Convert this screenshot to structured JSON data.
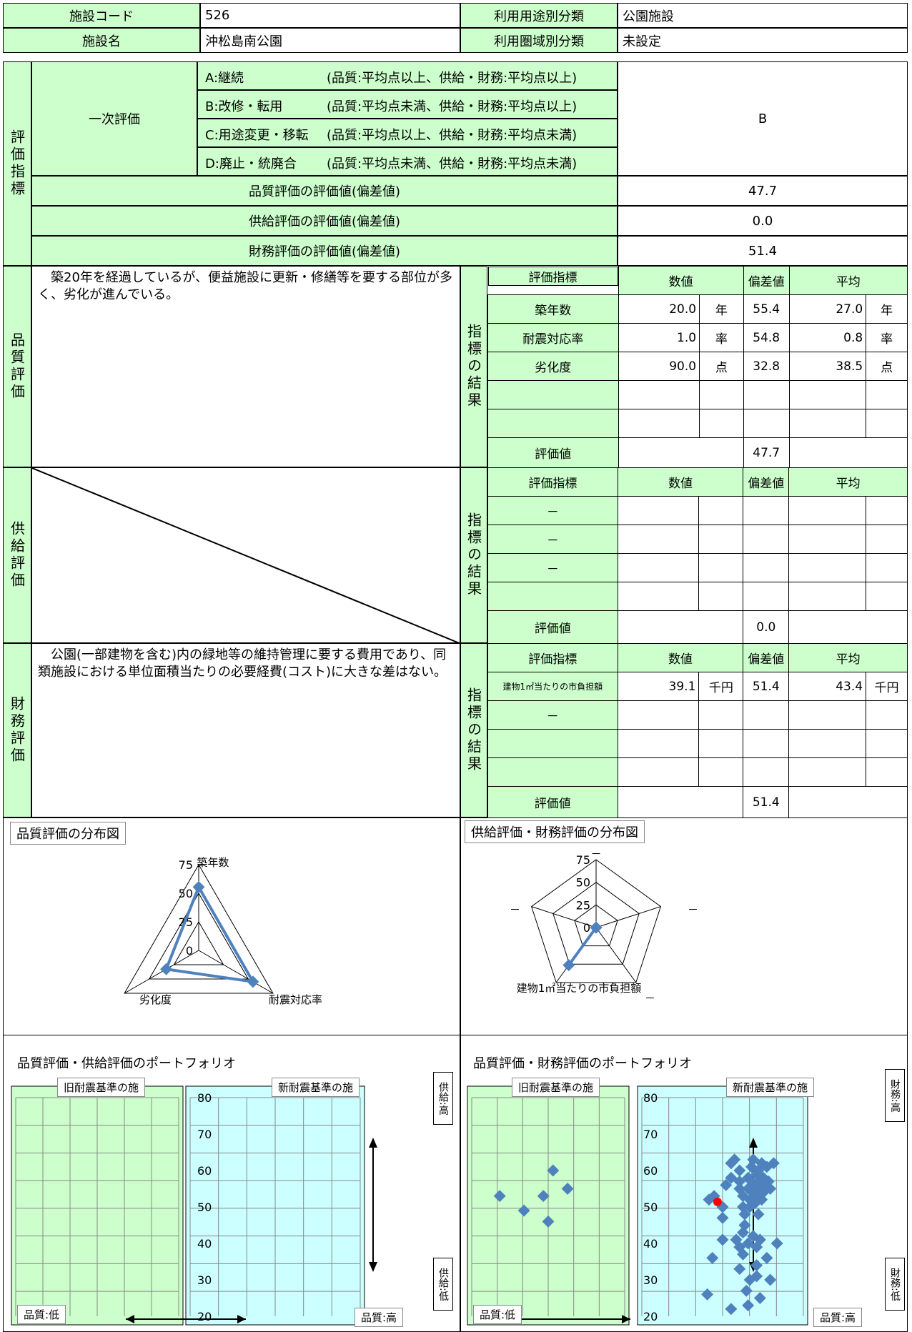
{
  "header": {
    "code_label": "施設コード",
    "code_value": "526",
    "usage_label": "利用用途別分類",
    "usage_value": "公園施設",
    "name_label": "施設名",
    "name_value": "沖松島南公園",
    "area_label": "利用圏域別分類",
    "area_value": "未設定"
  },
  "eval_index": {
    "side_label": "評価指標",
    "primary_label": "一次評価",
    "options": [
      {
        "code": "A:継続",
        "desc": "(品質:平均点以上、供給・財務:平均点以上)"
      },
      {
        "code": "B:改修・転用",
        "desc": "(品質:平均点未満、供給・財務:平均点以上)"
      },
      {
        "code": "C:用途変更・移転",
        "desc": "(品質:平均点以上、供給・財務:平均点未満)"
      },
      {
        "code": "D:廃止・統廃合",
        "desc": "(品質:平均点未満、供給・財務:平均点未満)"
      }
    ],
    "result": "B",
    "quality_label": "品質評価の評価値(偏差値)",
    "quality_value": "47.7",
    "supply_label": "供給評価の評価値(偏差値)",
    "supply_value": "0.0",
    "finance_label": "財務評価の評価値(偏差値)",
    "finance_value": "51.4"
  },
  "results_label": "指標の結果",
  "cols": {
    "indicator": "評価指標",
    "value": "数値",
    "deviation": "偏差値",
    "average": "平均",
    "eval": "評価値"
  },
  "quality": {
    "side_label": "品質評価",
    "comment": "　築20年を経過しているが、便益施設に更新・修繕等を要する部位が多く、劣化が進んでいる。",
    "rows": [
      {
        "name": "築年数",
        "value": "20.0",
        "unit": "年",
        "dev": "55.4",
        "avg": "27.0",
        "avg_unit": "年"
      },
      {
        "name": "耐震対応率",
        "value": "1.0",
        "unit": "率",
        "dev": "54.8",
        "avg": "0.8",
        "avg_unit": "率"
      },
      {
        "name": "劣化度",
        "value": "90.0",
        "unit": "点",
        "dev": "32.8",
        "avg": "38.5",
        "avg_unit": "点"
      }
    ],
    "eval_value": "47.7"
  },
  "supply": {
    "side_label": "供給評価",
    "rows": [
      {
        "name": "－"
      },
      {
        "name": "－"
      },
      {
        "name": "－"
      }
    ],
    "eval_value": "0.0"
  },
  "finance": {
    "side_label": "財務評価",
    "comment": "　公園(一部建物を含む)内の緑地等の維持管理に要する費用であり、同類施設における単位面積当たりの必要経費(コスト)に大きな差はない。",
    "rows": [
      {
        "name": "建物1㎡当たりの市負担額",
        "value": "39.1",
        "unit": "千円",
        "dev": "51.4",
        "avg": "43.4",
        "avg_unit": "千円"
      },
      {
        "name": "－"
      }
    ],
    "eval_value": "51.4"
  },
  "charts": {
    "radar1_title": "品質評価の分布図",
    "radar2_title": "供給評価・財務評価の分布図",
    "port1_title": "品質評価・供給評価のポートフォリオ",
    "port2_title": "品質評価・財務評価のポートフォリオ",
    "old_std": "旧耐震基準の施",
    "new_std": "新耐震基準の施",
    "q_low": "品質:低",
    "q_high": "品質:高",
    "s_high": "供給:高",
    "s_low": "供給:低",
    "f_high": "財務:高",
    "f_low": "財務:低"
  },
  "chart_data": [
    {
      "type": "radar",
      "axes": [
        "築年数",
        "耐震対応率",
        "劣化度"
      ],
      "ticks": [
        0,
        25,
        50,
        75
      ],
      "values": [
        55.4,
        54.8,
        32.8
      ]
    },
    {
      "type": "radar",
      "axes": [
        "－",
        "－",
        "－",
        "建物1㎡当たりの市負担額",
        "－"
      ],
      "ticks": [
        0,
        25,
        50,
        75
      ],
      "values": [
        0,
        0,
        0,
        51.4,
        0
      ]
    },
    {
      "type": "scatter",
      "ylim": [
        20,
        80
      ],
      "yticks": [
        80,
        70,
        60,
        50,
        40,
        30,
        20
      ],
      "points": []
    },
    {
      "type": "scatter",
      "ylim": [
        20,
        80
      ],
      "yticks": [
        80,
        70,
        60,
        50,
        40,
        30,
        20
      ],
      "old_points": [
        [
          0.2,
          53
        ],
        [
          0.35,
          49
        ],
        [
          0.53,
          60
        ],
        [
          0.47,
          53
        ],
        [
          0.62,
          55
        ],
        [
          0.5,
          46
        ]
      ],
      "new_points": [
        [
          0.42,
          52
        ],
        [
          0.45,
          53
        ],
        [
          0.5,
          47
        ],
        [
          0.5,
          50
        ],
        [
          0.52,
          56
        ],
        [
          0.55,
          58
        ],
        [
          0.55,
          62
        ],
        [
          0.57,
          63
        ],
        [
          0.6,
          60
        ],
        [
          0.6,
          57
        ],
        [
          0.6,
          55
        ],
        [
          0.62,
          53
        ],
        [
          0.62,
          50
        ],
        [
          0.63,
          48
        ],
        [
          0.63,
          45
        ],
        [
          0.65,
          58
        ],
        [
          0.65,
          55
        ],
        [
          0.66,
          52
        ],
        [
          0.66,
          50
        ],
        [
          0.67,
          61
        ],
        [
          0.67,
          57
        ],
        [
          0.68,
          63
        ],
        [
          0.68,
          54
        ],
        [
          0.69,
          51
        ],
        [
          0.7,
          59
        ],
        [
          0.7,
          56
        ],
        [
          0.7,
          53
        ],
        [
          0.71,
          60
        ],
        [
          0.71,
          48
        ],
        [
          0.72,
          57
        ],
        [
          0.72,
          55
        ],
        [
          0.73,
          62
        ],
        [
          0.73,
          52
        ],
        [
          0.74,
          58
        ],
        [
          0.74,
          54
        ],
        [
          0.75,
          56
        ],
        [
          0.76,
          61
        ],
        [
          0.77,
          57
        ],
        [
          0.78,
          55
        ],
        [
          0.8,
          62
        ],
        [
          0.58,
          41
        ],
        [
          0.6,
          39
        ],
        [
          0.62,
          37
        ],
        [
          0.65,
          40
        ],
        [
          0.68,
          42
        ],
        [
          0.7,
          39
        ],
        [
          0.72,
          41
        ],
        [
          0.6,
          33
        ],
        [
          0.66,
          30
        ],
        [
          0.7,
          31
        ],
        [
          0.78,
          30
        ],
        [
          0.64,
          27
        ],
        [
          0.72,
          25
        ],
        [
          0.7,
          34
        ],
        [
          0.76,
          36
        ],
        [
          0.62,
          43
        ],
        [
          0.44,
          36
        ],
        [
          0.5,
          41
        ],
        [
          0.41,
          26
        ],
        [
          0.55,
          22
        ],
        [
          0.65,
          23
        ],
        [
          0.82,
          40
        ]
      ],
      "highlight": [
        0.47,
        51.4
      ]
    }
  ]
}
